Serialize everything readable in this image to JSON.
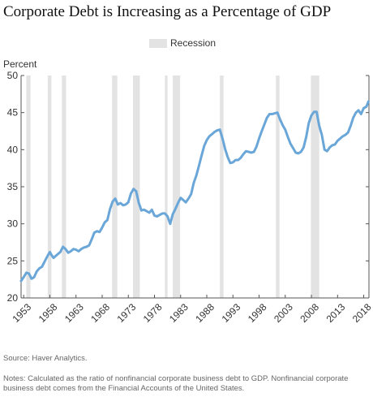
{
  "chart_data": {
    "type": "line",
    "title": "Corporate Debt is Increasing as a Percentage of GDP",
    "ylabel": "Percent",
    "xlabel": "",
    "ylim": [
      20,
      50
    ],
    "xlim": [
      1952.5,
      2019.0
    ],
    "yticks": [
      20,
      25,
      30,
      35,
      40,
      45,
      50
    ],
    "xticks": [
      "1953",
      "1958",
      "1963",
      "1968",
      "1973",
      "1978",
      "1983",
      "1988",
      "1993",
      "1998",
      "2003",
      "2008",
      "2013",
      "2018"
    ],
    "legend": {
      "label": "Recession",
      "position": "top-center"
    },
    "grid": false,
    "line_color": "#6aa7d8",
    "recession_color": "#e3e3e3",
    "recessions": [
      [
        1953.5,
        1954.3
      ],
      [
        1957.6,
        1958.3
      ],
      [
        1960.3,
        1961.1
      ],
      [
        1969.9,
        1970.9
      ],
      [
        1973.9,
        1975.2
      ],
      [
        1980.0,
        1980.5
      ],
      [
        1981.5,
        1982.9
      ],
      [
        1990.5,
        1991.2
      ],
      [
        2001.2,
        2001.9
      ],
      [
        2007.9,
        2009.5
      ]
    ],
    "series": [
      {
        "name": "",
        "x": [
          1952.5,
          1953.0,
          1953.5,
          1954.0,
          1954.5,
          1955.0,
          1955.5,
          1956.0,
          1956.5,
          1957.0,
          1957.5,
          1958.0,
          1958.3,
          1958.7,
          1959.0,
          1959.5,
          1960.0,
          1960.5,
          1961.0,
          1961.5,
          1962.0,
          1962.5,
          1963.0,
          1963.5,
          1964.0,
          1964.5,
          1965.0,
          1965.5,
          1966.0,
          1966.5,
          1967.0,
          1967.5,
          1968.0,
          1968.5,
          1969.0,
          1969.5,
          1970.0,
          1970.5,
          1971.0,
          1971.5,
          1972.0,
          1972.5,
          1973.0,
          1973.5,
          1974.0,
          1974.5,
          1975.0,
          1975.5,
          1976.0,
          1976.5,
          1977.0,
          1977.5,
          1978.0,
          1978.5,
          1979.0,
          1979.5,
          1980.0,
          1980.5,
          1981.0,
          1981.5,
          1982.0,
          1982.5,
          1983.0,
          1983.5,
          1984.0,
          1984.5,
          1985.0,
          1985.5,
          1986.0,
          1986.5,
          1987.0,
          1987.5,
          1988.0,
          1988.5,
          1989.0,
          1989.5,
          1990.0,
          1990.5,
          1991.0,
          1991.5,
          1992.0,
          1992.5,
          1993.0,
          1993.5,
          1994.0,
          1994.5,
          1995.0,
          1995.5,
          1996.0,
          1996.5,
          1997.0,
          1997.5,
          1998.0,
          1998.5,
          1999.0,
          1999.5,
          2000.0,
          2000.5,
          2001.0,
          2001.5,
          2002.0,
          2002.5,
          2003.0,
          2003.5,
          2004.0,
          2004.5,
          2005.0,
          2005.5,
          2006.0,
          2006.5,
          2007.0,
          2007.5,
          2008.0,
          2008.5,
          2009.0,
          2009.5,
          2010.0,
          2010.5,
          2011.0,
          2011.5,
          2012.0,
          2012.5,
          2013.0,
          2013.5,
          2014.0,
          2014.5,
          2015.0,
          2015.5,
          2016.0,
          2016.5,
          2017.0,
          2017.5,
          2018.0,
          2018.5,
          2018.9
        ],
        "values": [
          22.3,
          22.8,
          23.4,
          23.3,
          22.6,
          22.8,
          23.6,
          24.0,
          24.2,
          24.9,
          25.6,
          26.2,
          25.8,
          25.4,
          25.6,
          25.9,
          26.2,
          26.9,
          26.6,
          26.1,
          26.3,
          26.6,
          26.5,
          26.3,
          26.6,
          26.8,
          26.9,
          27.1,
          27.9,
          28.8,
          29.0,
          28.9,
          29.5,
          30.2,
          30.5,
          32.0,
          33.0,
          33.4,
          32.6,
          32.8,
          32.5,
          32.6,
          32.9,
          34.1,
          34.7,
          34.4,
          32.8,
          31.8,
          31.9,
          31.7,
          31.5,
          31.9,
          31.1,
          31.0,
          31.2,
          31.4,
          31.4,
          31.0,
          30.0,
          31.3,
          32.0,
          32.8,
          33.5,
          33.2,
          32.9,
          33.4,
          34.0,
          35.5,
          36.5,
          37.8,
          39.2,
          40.5,
          41.3,
          41.8,
          42.1,
          42.4,
          42.6,
          42.7,
          41.5,
          40.1,
          39.0,
          38.2,
          38.3,
          38.6,
          38.6,
          38.9,
          39.4,
          39.8,
          39.7,
          39.6,
          39.7,
          40.4,
          41.5,
          42.5,
          43.4,
          44.3,
          44.8,
          44.8,
          44.9,
          45.0,
          44.1,
          43.3,
          42.7,
          41.7,
          40.8,
          40.2,
          39.6,
          39.5,
          39.7,
          40.3,
          41.7,
          43.6,
          44.6,
          45.1,
          45.1,
          43.2,
          42.0,
          40.0,
          39.8,
          40.3,
          40.6,
          40.7,
          41.2,
          41.5,
          41.8,
          42.0,
          42.3,
          43.2,
          44.3,
          45.0,
          45.3,
          44.8,
          45.6,
          45.8,
          46.5
        ]
      }
    ]
  },
  "source": "Source: Haver Analytics.",
  "notes": "Notes: Calculated as the ratio of nonfinancial corporate business debt to GDP. Nonfinancial corporate business debt comes from the Financial Accounts of the United States."
}
